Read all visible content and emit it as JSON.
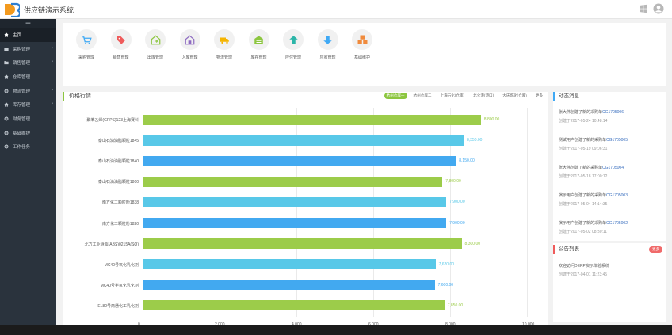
{
  "app": {
    "title": "供应链演示系统"
  },
  "sidebar": {
    "toggle_icon": "☰",
    "items": [
      {
        "label": "主页",
        "icon": "home-icon"
      },
      {
        "label": "采购管理",
        "icon": "folder-icon"
      },
      {
        "label": "销售管理",
        "icon": "folder-icon"
      },
      {
        "label": "仓库管理",
        "icon": "home-icon"
      },
      {
        "label": "物流管理",
        "icon": "gear-icon"
      },
      {
        "label": "库存管理",
        "icon": "home-icon"
      },
      {
        "label": "财务管理",
        "icon": "gear-icon"
      },
      {
        "label": "基础维护",
        "icon": "gear-icon"
      },
      {
        "label": "工作任务",
        "icon": "gear-icon"
      }
    ]
  },
  "toolbar": {
    "tools": [
      {
        "label": "采购管理",
        "icon": "cart-icon",
        "color": "#3fa9f5"
      },
      {
        "label": "销售管理",
        "icon": "tag-icon",
        "color": "#ef5b5b"
      },
      {
        "label": "出库管理",
        "icon": "warehouse-out-icon",
        "color": "#8cc63f"
      },
      {
        "label": "入库管理",
        "icon": "warehouse-in-icon",
        "color": "#8e6bc1"
      },
      {
        "label": "物流管理",
        "icon": "truck-icon",
        "color": "#f5b400"
      },
      {
        "label": "库存管理",
        "icon": "storage-icon",
        "color": "#8cc63f"
      },
      {
        "label": "应付管理",
        "icon": "payable-icon",
        "color": "#2bb5a8"
      },
      {
        "label": "应收管理",
        "icon": "receivable-icon",
        "color": "#3fa9f5"
      },
      {
        "label": "基础维护",
        "icon": "abc-icon",
        "color": "#f08a3c"
      }
    ]
  },
  "price_panel": {
    "title": "价格行情",
    "tabs": [
      "杭州仓库一",
      "杭州仓库二",
      "上海石化(仓库)",
      "北仑港(港口)",
      "大庆炼化(仓库)",
      "更多"
    ],
    "active_tab": 0
  },
  "chart_data": {
    "type": "bar",
    "orientation": "horizontal",
    "categories": [
      "聚苯乙烯(GPPS)123上海赛科",
      "泰山石油油脂颗粒1845",
      "泰山石油油脂颗粒1840",
      "泰山石油油脂颗粒1800",
      "南方化工颗粒粉1838",
      "南方化工颗粒粉1820",
      "北方工业树脂(ABS)0215A(SQ)",
      "MC40号氧化乳化剂",
      "MC40号半氧化乳化剂",
      "EL80号商通化工乳化剂"
    ],
    "values": [
      8800,
      8350,
      8150,
      7800,
      7900,
      7900,
      8300,
      7620,
      7600,
      7850
    ],
    "value_labels": [
      "8,800.00",
      "8,350.00",
      "8,150.00",
      "7,800.00",
      "7,900.00",
      "7,900.00",
      "8,300.00",
      "7,620.00",
      "7,600.00",
      "7,850.00"
    ],
    "bar_colors": [
      "#9ccc4a",
      "#58c8e8",
      "#42a9f0",
      "#9ccc4a",
      "#58c8e8",
      "#42a9f0",
      "#9ccc4a",
      "#58c8e8",
      "#42a9f0",
      "#9ccc4a"
    ],
    "xlim": [
      0,
      10000
    ],
    "xticks": [
      "0",
      "2,000",
      "4,000",
      "6,000",
      "8,000",
      "10,000"
    ],
    "grid": true
  },
  "news_panel": {
    "title": "动态消息",
    "items": [
      {
        "text": "张大伟创建了新的采购单",
        "code": "CG1705006",
        "time": "创建于2017-05-24 10:48:14"
      },
      {
        "text": "测试用户创建了新的采购单",
        "code": "CG1705005",
        "time": "创建于2017-05-19 09:06:31"
      },
      {
        "text": "张大伟创建了新的采购单",
        "code": "CG1705004",
        "time": "创建于2017-05-18 17:00:12"
      },
      {
        "text": "演示用户创建了新的采购单",
        "code": "CG1705003",
        "time": "创建于2017-05-04 14:14:35"
      },
      {
        "text": "演示用户创建了新的采购单",
        "code": "CG1705002",
        "time": "创建于2017-05-02 08:30:11"
      }
    ]
  },
  "announcement_panel": {
    "title": "公告列表",
    "more": "更多",
    "items": [
      {
        "text": "欢迎访问DERP演示体验系统",
        "time": "创建于2017-04-01 11:23:45"
      }
    ]
  }
}
